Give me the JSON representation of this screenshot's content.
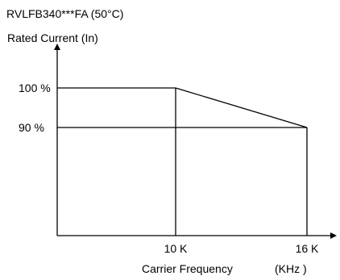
{
  "chart_data": {
    "type": "line",
    "title": "RVLFB340***FA (50°C)",
    "ylabel": "Rated Current (In)",
    "xlabel": "Carrier Frequency",
    "xunit": "(KHz )",
    "x_tick_labels": [
      {
        "x": 10,
        "label": "10 K"
      },
      {
        "x": 16,
        "label": "16 K"
      }
    ],
    "y_tick_labels": [
      {
        "y": 100,
        "label": "100 %"
      },
      {
        "y": 90,
        "label": "90 %"
      }
    ],
    "series": [
      {
        "values": [
          {
            "x": 0,
            "y": 100
          },
          {
            "x": 10,
            "y": 100
          },
          {
            "x": 16,
            "y": 90
          }
        ]
      }
    ],
    "reference_lines": [
      {
        "orientation": "vertical",
        "x": 10,
        "from_y": 100
      },
      {
        "orientation": "vertical",
        "x": 16,
        "from_y": 90
      },
      {
        "orientation": "horizontal",
        "y": 90,
        "from_x": 0,
        "to_x": 16
      }
    ],
    "grid": false,
    "colors": {
      "line": "#000000",
      "text": "#000000",
      "background": "#ffffff"
    }
  }
}
